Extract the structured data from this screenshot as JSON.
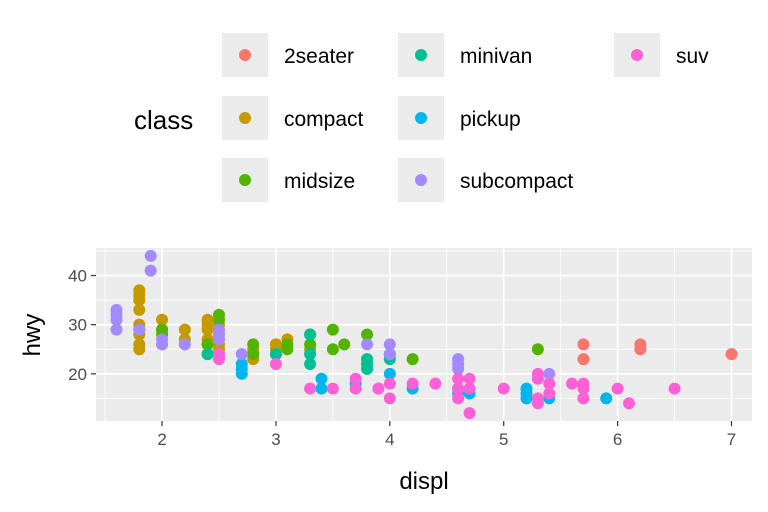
{
  "chart_data": {
    "type": "scatter",
    "title": "",
    "xlabel": "displ",
    "ylabel": "hwy",
    "xlim": [
      1.42,
      7.18
    ],
    "ylim": [
      10.4,
      45.6
    ],
    "x_ticks": [
      2,
      3,
      4,
      5,
      6,
      7
    ],
    "y_ticks": [
      20,
      30,
      40
    ],
    "grid": true,
    "legend": {
      "title": "class",
      "placement": "top",
      "entries": [
        {
          "label": "2seater",
          "color": "#F8766D"
        },
        {
          "label": "compact",
          "color": "#C49A00"
        },
        {
          "label": "midsize",
          "color": "#53B400"
        },
        {
          "label": "minivan",
          "color": "#00C094"
        },
        {
          "label": "pickup",
          "color": "#00B6EB"
        },
        {
          "label": "subcompact",
          "color": "#A58AFF"
        },
        {
          "label": "suv",
          "color": "#FB61D7"
        }
      ]
    },
    "series": [
      {
        "name": "2seater",
        "color": "#F8766D",
        "x": [
          5.7,
          5.7,
          6.2,
          6.2,
          7.0
        ],
        "y": [
          26,
          23,
          26,
          25,
          24
        ]
      },
      {
        "name": "compact",
        "color": "#C49A00",
        "x": [
          1.8,
          1.8,
          1.8,
          1.8,
          1.8,
          1.8,
          1.8,
          1.8,
          2.0,
          2.0,
          2.0,
          2.2,
          2.2,
          2.4,
          2.4,
          2.4,
          2.4,
          2.4,
          2.5,
          2.5,
          2.5,
          2.5,
          2.5,
          2.8,
          2.8,
          2.8,
          3.0,
          3.0,
          3.0,
          3.1,
          3.1,
          3.3
        ],
        "y": [
          25,
          26,
          28,
          30,
          33,
          35,
          36,
          37,
          26,
          29,
          31,
          27,
          29,
          26,
          27,
          29,
          30,
          31,
          25,
          26,
          27,
          28,
          30,
          23,
          24,
          25,
          25,
          26,
          26,
          26,
          27,
          25
        ]
      },
      {
        "name": "midsize",
        "color": "#53B400",
        "x": [
          1.8,
          2.0,
          2.0,
          2.4,
          2.4,
          2.5,
          2.5,
          2.8,
          2.8,
          3.0,
          3.1,
          3.1,
          3.3,
          3.3,
          3.5,
          3.5,
          3.6,
          3.8,
          4.2,
          5.3
        ],
        "y": [
          29,
          28,
          29,
          24,
          26,
          31,
          32,
          24,
          26,
          24,
          25,
          26,
          26,
          28,
          25,
          29,
          26,
          28,
          23,
          25
        ]
      },
      {
        "name": "minivan",
        "color": "#00C094",
        "x": [
          2.4,
          3.0,
          3.3,
          3.3,
          3.3,
          3.8,
          3.8,
          3.8,
          4.0,
          4.0
        ],
        "y": [
          24,
          24,
          22,
          24,
          28,
          21,
          22,
          23,
          23,
          24
        ]
      },
      {
        "name": "pickup",
        "color": "#00B6EB",
        "x": [
          2.7,
          2.7,
          2.7,
          3.4,
          3.4,
          3.7,
          3.9,
          4.0,
          4.2,
          4.6,
          4.6,
          4.7,
          4.7,
          5.2,
          5.2,
          5.2,
          5.4,
          5.9
        ],
        "y": [
          20,
          21,
          22,
          17,
          19,
          18,
          17,
          20,
          17,
          16,
          17,
          16,
          17,
          15,
          16,
          17,
          15,
          15
        ]
      },
      {
        "name": "subcompact",
        "color": "#A58AFF",
        "x": [
          1.6,
          1.6,
          1.6,
          1.6,
          1.8,
          1.9,
          1.9,
          2.0,
          2.0,
          2.2,
          2.5,
          2.5,
          2.5,
          2.7,
          3.8,
          4.0,
          4.0,
          4.6,
          4.6,
          4.6,
          5.4,
          5.4
        ],
        "y": [
          29,
          32,
          33,
          31,
          29,
          41,
          44,
          26,
          27,
          26,
          27,
          28,
          29,
          24,
          26,
          24,
          26,
          21,
          22,
          23,
          18,
          20
        ]
      },
      {
        "name": "suv",
        "color": "#FB61D7",
        "x": [
          2.5,
          2.5,
          3.0,
          3.3,
          3.5,
          3.7,
          3.7,
          3.9,
          4.0,
          4.0,
          4.2,
          4.4,
          4.6,
          4.6,
          4.6,
          4.7,
          4.7,
          4.7,
          5.0,
          5.3,
          5.3,
          5.3,
          5.3,
          5.4,
          5.4,
          5.6,
          5.7,
          5.7,
          5.7,
          6.0,
          6.1,
          6.5
        ],
        "y": [
          23,
          24,
          22,
          17,
          17,
          19,
          17,
          17,
          15,
          18,
          18,
          18,
          15,
          17,
          19,
          12,
          17,
          19,
          17,
          14,
          15,
          19,
          20,
          16,
          18,
          18,
          15,
          17,
          18,
          17,
          14,
          17
        ]
      }
    ]
  }
}
